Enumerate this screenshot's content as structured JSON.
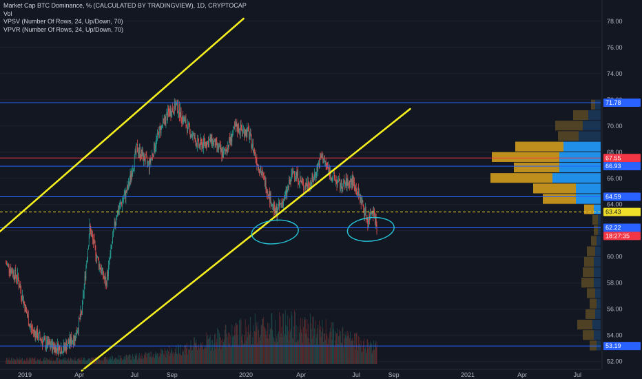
{
  "legend": {
    "title": "Market Cap BTC Dominance, % (CALCULATED BY TRADINGVIEW), 1D, CRYPTOCAP",
    "line2": "Vol",
    "line3": "VPSV (Number Of Rows, 24, Up/Down, 70)",
    "line4": "VPVR (Number Of Rows, 24, Up/Down, 70)"
  },
  "chart_data": {
    "type": "candlestick",
    "title": "Market Cap BTC Dominance, % (CALCULATED BY TRADINGVIEW), 1D, CRYPTOCAP",
    "ylim": [
      51.3,
      79.2
    ],
    "y_ticks": [
      "78.00",
      "76.00",
      "74.00",
      "72.00",
      "70.00",
      "68.00",
      "66.00",
      "64.00",
      "62.00",
      "60.00",
      "58.00",
      "56.00",
      "54.00",
      "52.00"
    ],
    "x_ticks": [
      "2019",
      "Apr",
      "Jul",
      "Sep",
      "2020",
      "Apr",
      "Jul",
      "Sep",
      "2021",
      "Apr",
      "Jul"
    ],
    "price_path": [
      {
        "date": "2018-12-01",
        "close": 59.5
      },
      {
        "date": "2018-12-20",
        "close": 58.4
      },
      {
        "date": "2019-01-10",
        "close": 54.6
      },
      {
        "date": "2019-02-05",
        "close": 53.3
      },
      {
        "date": "2019-03-05",
        "close": 53.0
      },
      {
        "date": "2019-03-25",
        "close": 53.9
      },
      {
        "date": "2019-04-05",
        "close": 55.8
      },
      {
        "date": "2019-04-18",
        "close": 62.2
      },
      {
        "date": "2019-05-01",
        "close": 59.8
      },
      {
        "date": "2019-05-15",
        "close": 57.9
      },
      {
        "date": "2019-06-01",
        "close": 63.2
      },
      {
        "date": "2019-06-20",
        "close": 65.2
      },
      {
        "date": "2019-07-05",
        "close": 68.3
      },
      {
        "date": "2019-07-25",
        "close": 67.0
      },
      {
        "date": "2019-08-10",
        "close": 69.5
      },
      {
        "date": "2019-08-25",
        "close": 70.9
      },
      {
        "date": "2019-09-08",
        "close": 71.6
      },
      {
        "date": "2019-09-25",
        "close": 70.0
      },
      {
        "date": "2019-10-15",
        "close": 68.5
      },
      {
        "date": "2019-11-05",
        "close": 68.9
      },
      {
        "date": "2019-11-25",
        "close": 67.8
      },
      {
        "date": "2019-12-15",
        "close": 69.9
      },
      {
        "date": "2020-01-05",
        "close": 69.5
      },
      {
        "date": "2020-01-20",
        "close": 67.2
      },
      {
        "date": "2020-02-05",
        "close": 65.2
      },
      {
        "date": "2020-02-18",
        "close": 63.3
      },
      {
        "date": "2020-03-05",
        "close": 64.5
      },
      {
        "date": "2020-03-20",
        "close": 66.6
      },
      {
        "date": "2020-04-05",
        "close": 65.4
      },
      {
        "date": "2020-04-20",
        "close": 65.8
      },
      {
        "date": "2020-05-05",
        "close": 67.7
      },
      {
        "date": "2020-05-20",
        "close": 66.3
      },
      {
        "date": "2020-06-05",
        "close": 65.4
      },
      {
        "date": "2020-06-25",
        "close": 65.8
      },
      {
        "date": "2020-07-10",
        "close": 64.2
      },
      {
        "date": "2020-07-20",
        "close": 62.7
      },
      {
        "date": "2020-07-28",
        "close": 63.8
      },
      {
        "date": "2020-08-04",
        "close": 62.3
      }
    ],
    "horizontal_levels": [
      {
        "value": 71.78,
        "label": "71.78",
        "color": "#2962ff"
      },
      {
        "value": 67.55,
        "label": "67.55",
        "color": "#f23645"
      },
      {
        "value": 66.93,
        "label": "66.93",
        "color": "#2962ff"
      },
      {
        "value": 64.59,
        "label": "64.59",
        "color": "#2962ff"
      },
      {
        "value": 63.43,
        "label": "63.43",
        "color": "#f0e02a"
      },
      {
        "value": 62.22,
        "label": "62.22",
        "color": "#2962ff"
      },
      {
        "value": 53.19,
        "label": "53.19",
        "color": "#2962ff"
      }
    ],
    "current_price": {
      "value": 61.6,
      "countdown": "18:27:35",
      "color": "#f23645"
    },
    "trend_channel": [
      {
        "from": {
          "date": "2018-11-20",
          "value": 61.9
        },
        "to": {
          "date": "2019-12-28",
          "value": 78.2
        }
      },
      {
        "from": {
          "date": "2019-04-05",
          "value": 51.3
        },
        "to": {
          "date": "2020-09-28",
          "value": 71.3
        }
      }
    ],
    "volume_profile_right": [
      {
        "price": 71.6,
        "up": 6,
        "down": 8
      },
      {
        "price": 70.8,
        "up": 22,
        "down": 18
      },
      {
        "price": 70.0,
        "up": 40,
        "down": 26
      },
      {
        "price": 69.2,
        "up": 30,
        "down": 32
      },
      {
        "price": 68.4,
        "up": 70,
        "down": 54
      },
      {
        "price": 67.6,
        "up": 98,
        "down": 60
      },
      {
        "price": 66.8,
        "up": 66,
        "down": 60
      },
      {
        "price": 66.0,
        "up": 90,
        "down": 70
      },
      {
        "price": 65.2,
        "up": 62,
        "down": 36
      },
      {
        "price": 64.4,
        "up": 48,
        "down": 36
      },
      {
        "price": 63.6,
        "up": 14,
        "down": 10
      },
      {
        "price": 62.8,
        "up": 8,
        "down": 4
      },
      {
        "price": 62.0,
        "up": 6,
        "down": 4
      },
      {
        "price": 61.2,
        "up": 8,
        "down": 6
      },
      {
        "price": 60.4,
        "up": 12,
        "down": 8
      },
      {
        "price": 59.6,
        "up": 14,
        "down": 10
      },
      {
        "price": 58.8,
        "up": 16,
        "down": 10
      },
      {
        "price": 58.0,
        "up": 18,
        "down": 10
      },
      {
        "price": 57.2,
        "up": 12,
        "down": 8
      },
      {
        "price": 56.4,
        "up": 10,
        "down": 6
      },
      {
        "price": 55.6,
        "up": 14,
        "down": 8
      },
      {
        "price": 54.8,
        "up": 22,
        "down": 12
      },
      {
        "price": 54.0,
        "up": 16,
        "down": 10
      },
      {
        "price": 53.2,
        "up": 10,
        "down": 6
      }
    ],
    "volume_note": "volume bars along bottom, rising into 2020, peaking around Mar 2020",
    "annotations": [
      {
        "type": "ellipse",
        "near_date": "2020-02-18",
        "near_value": 61.9,
        "color": "#26c6da"
      },
      {
        "type": "ellipse",
        "near_date": "2020-07-25",
        "near_value": 62.1,
        "color": "#26c6da"
      }
    ]
  },
  "colors": {
    "background": "#131722",
    "up": "#26a69a",
    "down": "#ef5350",
    "grid": "#1e222d",
    "trend": "#f5f01e",
    "volume_up": "#1f5c58",
    "volume_down": "#7a2e2f",
    "vp_up": "#c8961e",
    "vp_down": "#2196f3",
    "vp_up_faint": "#5a4a24",
    "vp_down_faint": "#1b3a5a",
    "annotation": "#26c6da"
  }
}
